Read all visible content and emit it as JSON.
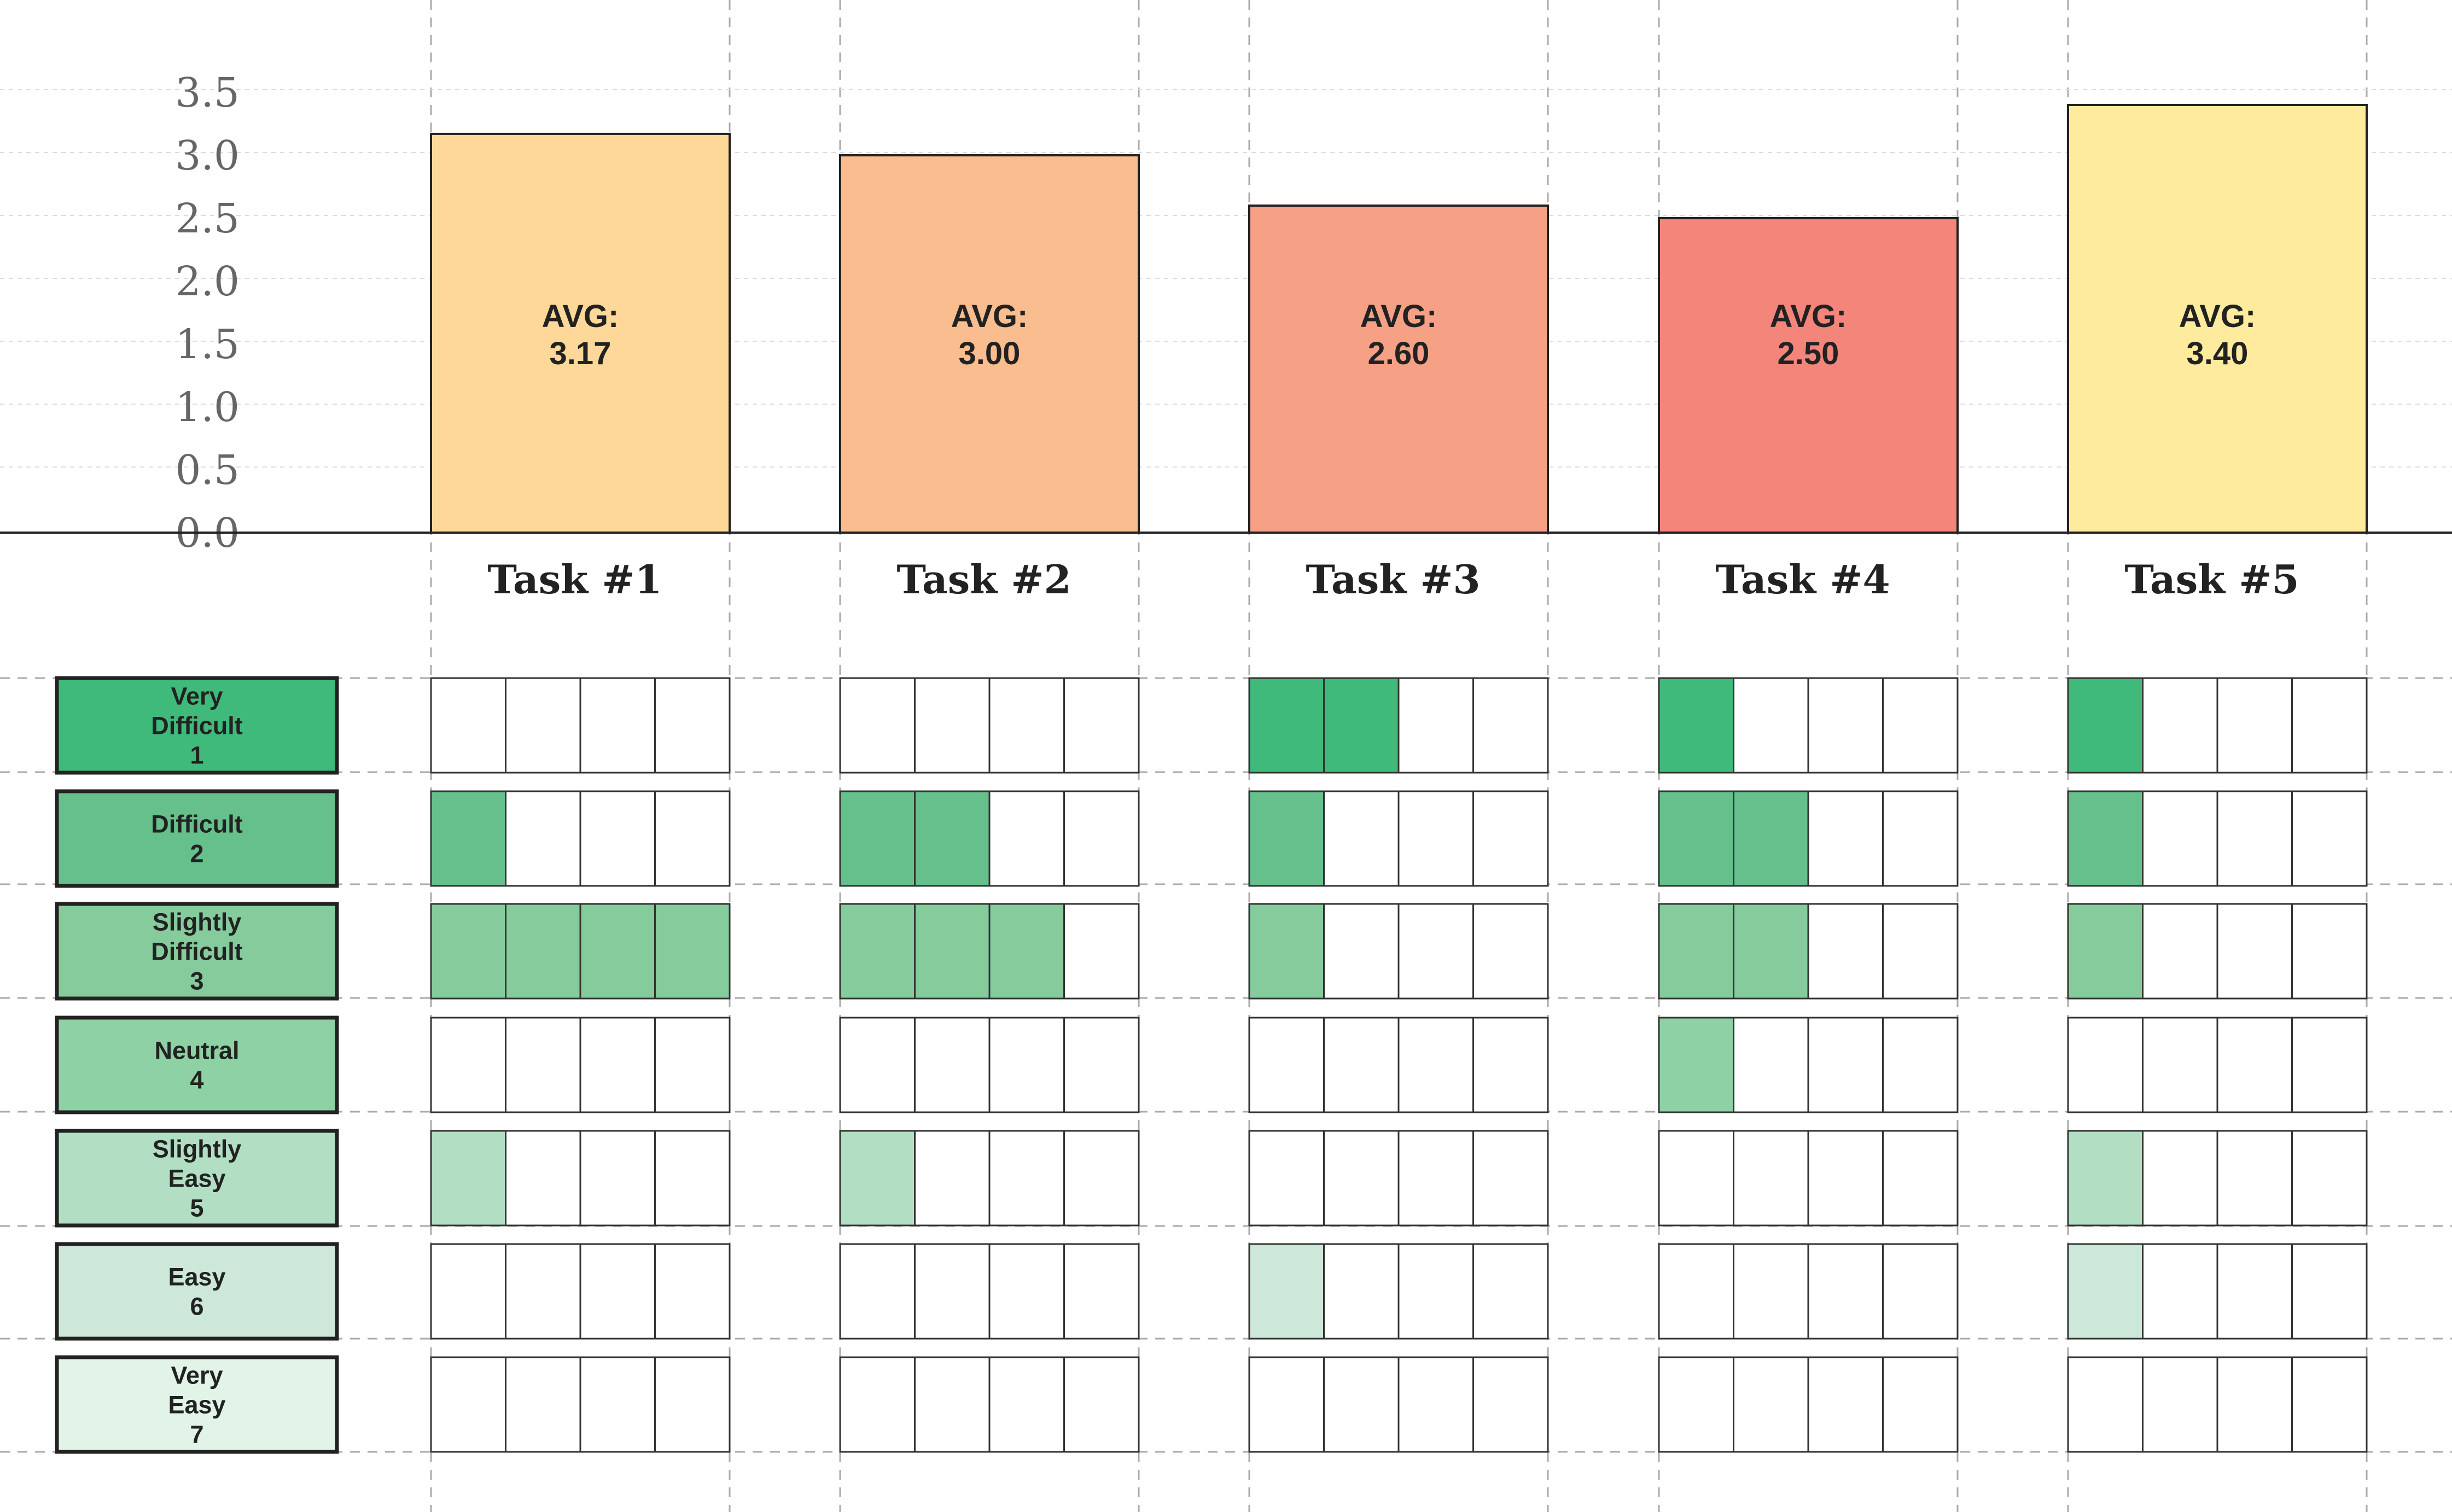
{
  "chart_data": {
    "type": "bar",
    "categories": [
      "Task #1",
      "Task #2",
      "Task #3",
      "Task #4",
      "Task #5"
    ],
    "values": [
      3.17,
      3.0,
      2.6,
      2.5,
      3.4
    ],
    "bar_labels": [
      [
        "AVG:",
        "3.17"
      ],
      [
        "AVG:",
        "3.00"
      ],
      [
        "AVG:",
        "2.60"
      ],
      [
        "AVG:",
        "2.50"
      ],
      [
        "AVG:",
        "3.40"
      ]
    ],
    "bar_colors": [
      "#FDD898",
      "#FABD8F",
      "#F6A185",
      "#F3857A",
      "#FEEB9D"
    ],
    "ylim": [
      0,
      3.5
    ],
    "yticks": [
      "0.0",
      "0.5",
      "1.0",
      "1.5",
      "2.0",
      "2.5",
      "3.0",
      "3.5"
    ],
    "grid": true,
    "rating_scale": [
      {
        "lines": [
          "Very",
          "Difficult",
          "1"
        ],
        "color": "#40BA7A"
      },
      {
        "lines": [
          "Difficult",
          "2"
        ],
        "color": "#66C08C"
      },
      {
        "lines": [
          "Slightly",
          "Difficult",
          "3"
        ],
        "color": "#85CB9C"
      },
      {
        "lines": [
          "Neutral",
          "4"
        ],
        "color": "#8ED1A4"
      },
      {
        "lines": [
          "Slightly",
          "Easy",
          "5"
        ],
        "color": "#B2DFC3"
      },
      {
        "lines": [
          "Easy",
          "6"
        ],
        "color": "#CDE8D8"
      },
      {
        "lines": [
          "Very",
          "Easy",
          "7"
        ],
        "color": "#E2F3E8"
      }
    ],
    "response_counts": [
      [
        0,
        1,
        4,
        0,
        1,
        0,
        0
      ],
      [
        0,
        2,
        3,
        0,
        1,
        0,
        0
      ],
      [
        2,
        1,
        1,
        0,
        0,
        1,
        0
      ],
      [
        1,
        2,
        2,
        1,
        0,
        0,
        0
      ],
      [
        1,
        1,
        1,
        0,
        1,
        1,
        0
      ]
    ]
  }
}
